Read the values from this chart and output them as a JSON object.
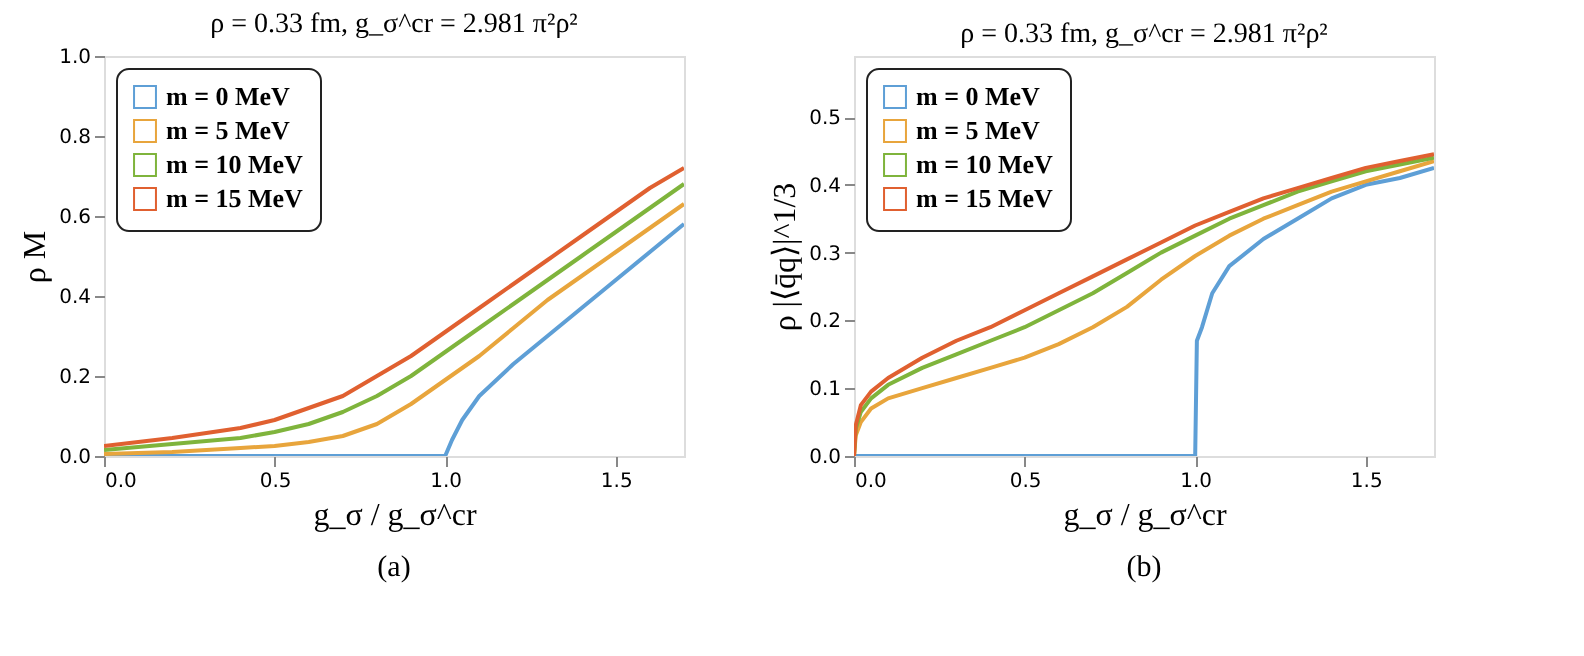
{
  "chart_data": [
    {
      "type": "line",
      "title": "ρ = 0.33 fm,  g_σ^cr = 2.981 π²ρ²",
      "xlabel": "g_σ / g_σ^cr",
      "ylabel": "ρ M",
      "annotations": [
        "(a)"
      ],
      "legend": "top left",
      "grid": false,
      "xlim": [
        0,
        1.7
      ],
      "xticks": [
        {
          "value": 0,
          "label": "0.0"
        },
        {
          "value": 0.5,
          "label": "0.5"
        },
        {
          "value": 1,
          "label": "1.0"
        },
        {
          "value": 1.5,
          "label": "1.5"
        }
      ],
      "ylim": [
        0,
        1
      ],
      "yticks": [
        {
          "value": 0,
          "label": "0.0"
        },
        {
          "value": 0.2,
          "label": "0.2"
        },
        {
          "value": 0.4,
          "label": "0.4"
        },
        {
          "value": 0.6,
          "label": "0.6"
        },
        {
          "value": 0.8,
          "label": "0.8"
        },
        {
          "value": 1,
          "label": "1.0"
        }
      ],
      "series": [
        {
          "name": "m = 0 MeV",
          "color": "#5e9fd6",
          "x": [
            0,
            0.5,
            1.0,
            1.02,
            1.05,
            1.1,
            1.2,
            1.3,
            1.4,
            1.5,
            1.6,
            1.7
          ],
          "values": [
            0,
            0,
            0,
            0.04,
            0.09,
            0.15,
            0.23,
            0.3,
            0.37,
            0.44,
            0.51,
            0.58
          ]
        },
        {
          "name": "m = 5 MeV",
          "color": "#e8a53c",
          "x": [
            0,
            0.2,
            0.4,
            0.5,
            0.6,
            0.7,
            0.8,
            0.9,
            1.0,
            1.1,
            1.2,
            1.3,
            1.4,
            1.5,
            1.6,
            1.7
          ],
          "values": [
            0.005,
            0.01,
            0.02,
            0.025,
            0.035,
            0.05,
            0.08,
            0.13,
            0.19,
            0.25,
            0.32,
            0.39,
            0.45,
            0.51,
            0.57,
            0.63
          ]
        },
        {
          "name": "m = 10 MeV",
          "color": "#7fb43c",
          "x": [
            0,
            0.2,
            0.4,
            0.5,
            0.6,
            0.7,
            0.8,
            0.9,
            1.0,
            1.1,
            1.2,
            1.3,
            1.4,
            1.5,
            1.6,
            1.7
          ],
          "values": [
            0.015,
            0.03,
            0.045,
            0.06,
            0.08,
            0.11,
            0.15,
            0.2,
            0.26,
            0.32,
            0.38,
            0.44,
            0.5,
            0.56,
            0.62,
            0.68
          ]
        },
        {
          "name": "m = 15 MeV",
          "color": "#e06030",
          "x": [
            0,
            0.2,
            0.4,
            0.5,
            0.6,
            0.7,
            0.8,
            0.9,
            1.0,
            1.1,
            1.2,
            1.3,
            1.4,
            1.5,
            1.6,
            1.7
          ],
          "values": [
            0.025,
            0.045,
            0.07,
            0.09,
            0.12,
            0.15,
            0.2,
            0.25,
            0.31,
            0.37,
            0.43,
            0.49,
            0.55,
            0.61,
            0.67,
            0.72
          ]
        }
      ]
    },
    {
      "type": "line",
      "title": "ρ = 0.33 fm,  g_σ^cr = 2.981 π²ρ²",
      "xlabel": "g_σ / g_σ^cr",
      "ylabel": "ρ |⟨q̄q⟩|^1/3",
      "annotations": [
        "(b)"
      ],
      "legend": "top left",
      "grid": false,
      "xlim": [
        0,
        1.7
      ],
      "xticks": [
        {
          "value": 0,
          "label": "0.0"
        },
        {
          "value": 0.5,
          "label": "0.5"
        },
        {
          "value": 1,
          "label": "1.0"
        },
        {
          "value": 1.5,
          "label": "1.5"
        }
      ],
      "ylim": [
        0,
        0.59
      ],
      "yticks": [
        {
          "value": 0,
          "label": "0.0"
        },
        {
          "value": 0.1,
          "label": "0.1"
        },
        {
          "value": 0.2,
          "label": "0.2"
        },
        {
          "value": 0.3,
          "label": "0.3"
        },
        {
          "value": 0.4,
          "label": "0.4"
        },
        {
          "value": 0.5,
          "label": "0.5"
        }
      ],
      "series": [
        {
          "name": "m = 0 MeV",
          "color": "#5e9fd6",
          "x": [
            0,
            0.5,
            1.0,
            1.005,
            1.02,
            1.05,
            1.1,
            1.2,
            1.3,
            1.4,
            1.5,
            1.6,
            1.7
          ],
          "values": [
            0,
            0,
            0,
            0.17,
            0.19,
            0.24,
            0.28,
            0.32,
            0.35,
            0.38,
            0.4,
            0.41,
            0.425
          ]
        },
        {
          "name": "m = 5 MeV",
          "color": "#e8a53c",
          "x": [
            0,
            0.005,
            0.02,
            0.05,
            0.1,
            0.2,
            0.3,
            0.4,
            0.5,
            0.6,
            0.7,
            0.8,
            0.9,
            1.0,
            1.1,
            1.2,
            1.3,
            1.4,
            1.5,
            1.6,
            1.7
          ],
          "values": [
            0,
            0.03,
            0.05,
            0.07,
            0.085,
            0.1,
            0.115,
            0.13,
            0.145,
            0.165,
            0.19,
            0.22,
            0.26,
            0.295,
            0.325,
            0.35,
            0.37,
            0.39,
            0.405,
            0.42,
            0.435
          ]
        },
        {
          "name": "m = 10 MeV",
          "color": "#7fb43c",
          "x": [
            0,
            0.005,
            0.02,
            0.05,
            0.1,
            0.2,
            0.3,
            0.4,
            0.5,
            0.6,
            0.7,
            0.8,
            0.9,
            1.0,
            1.1,
            1.2,
            1.3,
            1.4,
            1.5,
            1.6,
            1.7
          ],
          "values": [
            0,
            0.04,
            0.065,
            0.085,
            0.105,
            0.13,
            0.15,
            0.17,
            0.19,
            0.215,
            0.24,
            0.27,
            0.3,
            0.325,
            0.35,
            0.37,
            0.39,
            0.405,
            0.42,
            0.43,
            0.44
          ]
        },
        {
          "name": "m = 15 MeV",
          "color": "#e06030",
          "x": [
            0,
            0.005,
            0.02,
            0.05,
            0.1,
            0.2,
            0.3,
            0.4,
            0.5,
            0.6,
            0.7,
            0.8,
            0.9,
            1.0,
            1.1,
            1.2,
            1.3,
            1.4,
            1.5,
            1.6,
            1.7
          ],
          "values": [
            0,
            0.045,
            0.075,
            0.095,
            0.115,
            0.145,
            0.17,
            0.19,
            0.215,
            0.24,
            0.265,
            0.29,
            0.315,
            0.34,
            0.36,
            0.38,
            0.395,
            0.41,
            0.425,
            0.435,
            0.445
          ]
        }
      ]
    }
  ]
}
